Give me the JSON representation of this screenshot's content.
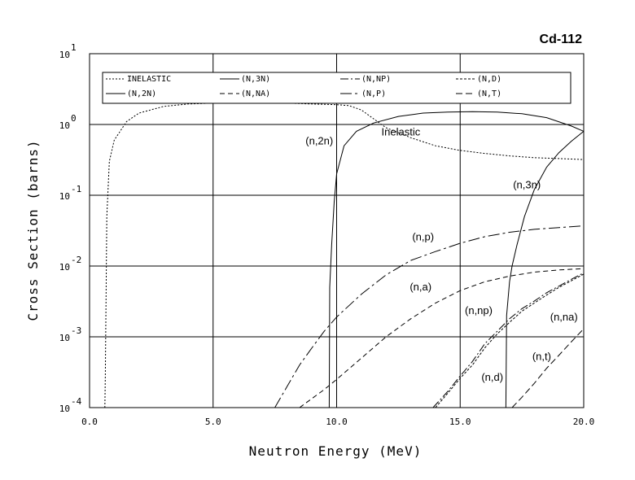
{
  "chart_data": {
    "type": "line",
    "title": "Cd-112",
    "xlabel": "Neutron Energy (MeV)",
    "ylabel": "Cross Section (barns)",
    "xlim": [
      0,
      20
    ],
    "ylim": [
      0.0001,
      10
    ],
    "yscale": "log",
    "grid": true,
    "legend_position": "top",
    "x_ticks": [
      "0.0",
      "5.0",
      "10.0",
      "15.0",
      "20.0"
    ],
    "y_tick_bases": [
      "10",
      "10",
      "10",
      "10",
      "10",
      "10"
    ],
    "y_tick_exponents": [
      "-4",
      "-3",
      "-2",
      "-1",
      "0",
      "1"
    ],
    "legend": [
      {
        "label": "INELASTIC",
        "series": "inelastic"
      },
      {
        "label": "(N,3N)",
        "series": "n3n"
      },
      {
        "label": "(N,NP)",
        "series": "nnp"
      },
      {
        "label": "(N,D)",
        "series": "nd"
      },
      {
        "label": "(N,2N)",
        "series": "n2n"
      },
      {
        "label": "(N,NA)",
        "series": "nna"
      },
      {
        "label": "(N,P)",
        "series": "np"
      },
      {
        "label": "(N,T)",
        "series": "nt"
      }
    ],
    "series": [
      {
        "id": "inelastic",
        "name": "INELASTIC",
        "dash": "2,2",
        "points": [
          [
            0.62,
            0.0001
          ],
          [
            0.64,
            0.0003
          ],
          [
            0.7,
            0.05
          ],
          [
            0.8,
            0.3
          ],
          [
            1.0,
            0.6
          ],
          [
            1.5,
            1.1
          ],
          [
            2.0,
            1.45
          ],
          [
            3.0,
            1.8
          ],
          [
            4.0,
            1.95
          ],
          [
            5.0,
            2.0
          ],
          [
            6.0,
            2.0
          ],
          [
            7.0,
            2.0
          ],
          [
            8.0,
            2.0
          ],
          [
            9.0,
            1.95
          ],
          [
            10.0,
            1.9
          ],
          [
            10.5,
            1.85
          ],
          [
            11.0,
            1.6
          ],
          [
            11.5,
            1.2
          ],
          [
            12.0,
            0.9
          ],
          [
            13.0,
            0.65
          ],
          [
            14.0,
            0.5
          ],
          [
            15.0,
            0.43
          ],
          [
            16.0,
            0.39
          ],
          [
            17.0,
            0.36
          ],
          [
            18.0,
            0.34
          ],
          [
            19.0,
            0.33
          ],
          [
            20.0,
            0.32
          ]
        ]
      },
      {
        "id": "n2n",
        "name": "(N,2N)",
        "dash": "",
        "points": [
          [
            9.7,
            0.0001
          ],
          [
            9.72,
            0.005
          ],
          [
            9.8,
            0.02
          ],
          [
            9.9,
            0.08
          ],
          [
            10.0,
            0.2
          ],
          [
            10.3,
            0.5
          ],
          [
            10.8,
            0.8
          ],
          [
            11.5,
            1.05
          ],
          [
            12.5,
            1.3
          ],
          [
            13.5,
            1.45
          ],
          [
            14.5,
            1.5
          ],
          [
            15.5,
            1.52
          ],
          [
            16.5,
            1.5
          ],
          [
            17.5,
            1.42
          ],
          [
            18.5,
            1.25
          ],
          [
            19.5,
            0.95
          ],
          [
            20.0,
            0.8
          ]
        ]
      },
      {
        "id": "n3n",
        "name": "(N,3N)",
        "dash": "",
        "points": [
          [
            16.85,
            0.0001
          ],
          [
            16.88,
            0.002
          ],
          [
            17.0,
            0.006
          ],
          [
            17.1,
            0.01
          ],
          [
            17.3,
            0.02
          ],
          [
            17.6,
            0.05
          ],
          [
            18.0,
            0.12
          ],
          [
            18.5,
            0.25
          ],
          [
            19.0,
            0.4
          ],
          [
            19.5,
            0.58
          ],
          [
            20.0,
            0.8
          ]
        ]
      },
      {
        "id": "np",
        "name": "(N,P)",
        "dash": "14,4,3,4",
        "points": [
          [
            7.5,
            0.0001
          ],
          [
            8.0,
            0.0002
          ],
          [
            8.5,
            0.0004
          ],
          [
            9.0,
            0.0007
          ],
          [
            9.5,
            0.0012
          ],
          [
            10.0,
            0.0019
          ],
          [
            11.0,
            0.004
          ],
          [
            12.0,
            0.0075
          ],
          [
            13.0,
            0.012
          ],
          [
            14.0,
            0.016
          ],
          [
            15.0,
            0.021
          ],
          [
            16.0,
            0.026
          ],
          [
            17.0,
            0.03
          ],
          [
            18.0,
            0.033
          ],
          [
            19.0,
            0.035
          ],
          [
            20.0,
            0.037
          ]
        ]
      },
      {
        "id": "nna",
        "name": "(N,NA)",
        "dash": "6,4",
        "points": [
          [
            8.5,
            0.0001
          ],
          [
            9.5,
            0.00018
          ],
          [
            10.0,
            0.00025
          ],
          [
            11.0,
            0.0005
          ],
          [
            12.0,
            0.001
          ],
          [
            13.0,
            0.0018
          ],
          [
            14.0,
            0.003
          ],
          [
            15.0,
            0.0045
          ],
          [
            16.0,
            0.006
          ],
          [
            17.0,
            0.0072
          ],
          [
            18.0,
            0.0082
          ],
          [
            19.0,
            0.0088
          ],
          [
            20.0,
            0.0092
          ]
        ]
      },
      {
        "id": "nnp",
        "name": "(N,NP)",
        "dash": "10,3,2,3",
        "points": [
          [
            13.9,
            0.0001
          ],
          [
            14.5,
            0.00017
          ],
          [
            15.0,
            0.00028
          ],
          [
            15.5,
            0.00045
          ],
          [
            16.0,
            0.0008
          ],
          [
            16.5,
            0.0012
          ],
          [
            17.0,
            0.0018
          ],
          [
            17.5,
            0.0025
          ],
          [
            18.0,
            0.0032
          ],
          [
            18.5,
            0.0042
          ],
          [
            19.0,
            0.0052
          ],
          [
            19.5,
            0.0065
          ],
          [
            20.0,
            0.008
          ]
        ]
      },
      {
        "id": "nd",
        "name": "(N,D)",
        "dash": "3,2",
        "points": [
          [
            14.0,
            0.0001
          ],
          [
            14.5,
            0.00016
          ],
          [
            15.0,
            0.00026
          ],
          [
            15.5,
            0.0004
          ],
          [
            16.0,
            0.0007
          ],
          [
            16.5,
            0.0011
          ],
          [
            17.0,
            0.0016
          ],
          [
            17.5,
            0.0023
          ],
          [
            18.0,
            0.003
          ],
          [
            18.5,
            0.0039
          ],
          [
            19.0,
            0.005
          ],
          [
            19.5,
            0.0062
          ],
          [
            20.0,
            0.0077
          ]
        ]
      },
      {
        "id": "nt",
        "name": "(N,T)",
        "dash": "8,4",
        "points": [
          [
            17.1,
            0.0001
          ],
          [
            17.5,
            0.00014
          ],
          [
            18.0,
            0.00022
          ],
          [
            18.5,
            0.00036
          ],
          [
            19.0,
            0.00055
          ],
          [
            19.5,
            0.00085
          ],
          [
            20.0,
            0.0013
          ]
        ]
      }
    ],
    "annotations": [
      {
        "text": "Inelastic",
        "x": 12.6,
        "y": 0.7
      },
      {
        "text": "(n,2n)",
        "x": 9.3,
        "y": 0.52
      },
      {
        "text": "(n,3n)",
        "x": 17.7,
        "y": 0.125
      },
      {
        "text": "(n,p)",
        "x": 13.5,
        "y": 0.023
      },
      {
        "text": "(n,a)",
        "x": 13.4,
        "y": 0.0045
      },
      {
        "text": "(n,np)",
        "x": 15.75,
        "y": 0.0021
      },
      {
        "text": "(n,na)",
        "x": 19.2,
        "y": 0.0017
      },
      {
        "text": "(n,t)",
        "x": 18.3,
        "y": 0.00047
      },
      {
        "text": "(n,d)",
        "x": 16.3,
        "y": 0.00024
      }
    ]
  }
}
